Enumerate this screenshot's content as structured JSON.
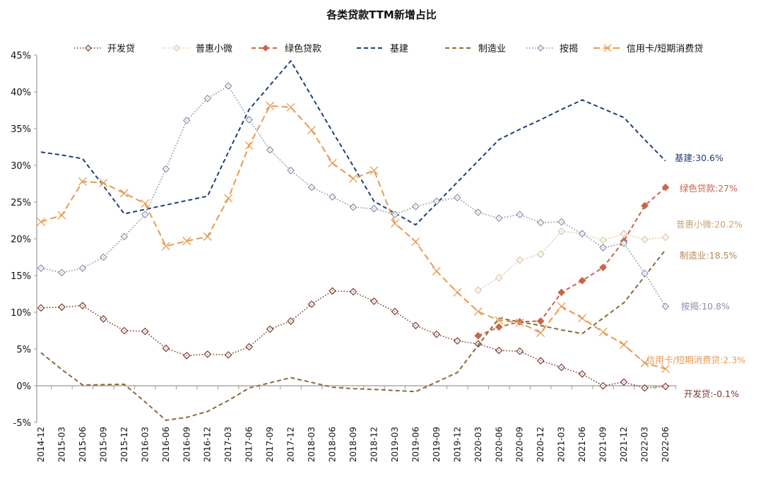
{
  "chart_data": {
    "type": "line",
    "title": "各类贷款TTM新增占比",
    "xlabel": "",
    "ylabel": "",
    "ylim": [
      -5,
      45
    ],
    "yticks": [
      "-5%",
      "0%",
      "5%",
      "10%",
      "15%",
      "20%",
      "25%",
      "30%",
      "35%",
      "40%",
      "45%"
    ],
    "ytick_values": [
      -5,
      0,
      5,
      10,
      15,
      20,
      25,
      30,
      35,
      40,
      45
    ],
    "legend_position": "top",
    "grid": false,
    "categories": [
      "2014-12",
      "2015-03",
      "2015-06",
      "2015-09",
      "2015-12",
      "2016-03",
      "2016-06",
      "2016-09",
      "2016-12",
      "2017-03",
      "2017-06",
      "2017-09",
      "2017-12",
      "2018-03",
      "2018-06",
      "2018-09",
      "2018-12",
      "2019-03",
      "2019-06",
      "2019-09",
      "2019-12",
      "2020-03",
      "2020-06",
      "2020-09",
      "2020-12",
      "2021-03",
      "2021-06",
      "2021-09",
      "2021-12",
      "2022-03",
      "2022-06"
    ],
    "series": [
      {
        "name": "开发贷",
        "color": "#7a3b2e",
        "dash": "dot",
        "marker": "diamond-open",
        "end_label": "开发贷:-0.1%",
        "values": [
          10.6,
          10.7,
          10.9,
          9.1,
          7.5,
          7.4,
          5.1,
          4.1,
          4.3,
          4.2,
          5.3,
          7.7,
          8.8,
          11.1,
          12.9,
          12.8,
          11.5,
          10.1,
          8.2,
          7.0,
          6.1,
          5.7,
          4.8,
          4.7,
          3.4,
          2.5,
          1.6,
          0.0,
          0.5,
          -0.3,
          -0.1
        ]
      },
      {
        "name": "普惠小微",
        "color": "#dcc3a3",
        "dash": "dot",
        "marker": "diamond-open",
        "end_label": "普惠小微:20.2%",
        "values": [
          null,
          null,
          null,
          null,
          null,
          null,
          null,
          null,
          null,
          null,
          null,
          null,
          null,
          null,
          null,
          null,
          null,
          null,
          null,
          null,
          null,
          13.0,
          14.7,
          17.1,
          17.9,
          21.0,
          20.7,
          19.8,
          20.7,
          19.9,
          20.2
        ]
      },
      {
        "name": "绿色贷款",
        "color": "#c8664a",
        "dash": "dash",
        "marker": "diamond-filled",
        "end_label": "绿色贷款:27%",
        "values": [
          null,
          null,
          null,
          null,
          null,
          null,
          null,
          null,
          null,
          null,
          null,
          null,
          null,
          null,
          null,
          null,
          null,
          null,
          null,
          null,
          null,
          6.8,
          8.0,
          8.7,
          8.8,
          12.7,
          14.3,
          16.1,
          19.7,
          24.5,
          27.0
        ]
      },
      {
        "name": "基建",
        "color": "#1f3f73",
        "dash": "dash",
        "marker": "none",
        "end_label": "基建:30.6%",
        "values": [
          31.8,
          31.4,
          30.9,
          27.2,
          23.4,
          24.0,
          24.6,
          25.2,
          25.8,
          31.8,
          37.6,
          40.9,
          44.2,
          39.4,
          34.6,
          29.9,
          25.1,
          23.5,
          21.9,
          24.8,
          27.7,
          30.6,
          33.5,
          34.9,
          36.2,
          37.6,
          38.9,
          37.7,
          36.5,
          33.5,
          30.6
        ]
      },
      {
        "name": "制造业",
        "color": "#8c6a3a",
        "dash": "dash",
        "marker": "none",
        "end_label": "制造业:18.5%",
        "values": [
          4.5,
          2.2,
          0.1,
          0.15,
          0.2,
          -2.2,
          -4.7,
          -4.3,
          -3.5,
          -2.0,
          -0.3,
          0.4,
          1.1,
          0.45,
          -0.2,
          -0.4,
          -0.5,
          -0.65,
          -0.8,
          0.5,
          1.8,
          5.5,
          9.2,
          8.7,
          8.2,
          7.6,
          7.1,
          9.2,
          11.3,
          14.9,
          18.5
        ]
      },
      {
        "name": "按揭",
        "color": "#8a90a8",
        "dash": "dot",
        "marker": "diamond-open",
        "end_label": "按揭:10.8%",
        "values": [
          16.0,
          15.4,
          16.0,
          17.5,
          20.3,
          23.3,
          29.5,
          36.1,
          39.1,
          40.8,
          36.2,
          32.1,
          29.3,
          27.0,
          25.7,
          24.3,
          24.1,
          23.3,
          24.4,
          25.1,
          25.6,
          23.6,
          22.8,
          23.3,
          22.2,
          22.3,
          20.7,
          18.8,
          19.4,
          15.3,
          10.8
        ]
      },
      {
        "name": "信用卡/短期消费贷",
        "color": "#e89a50",
        "dash": "longdash",
        "marker": "x",
        "end_label": "信用卡/短期消费贷:2.3%",
        "values": [
          22.3,
          23.2,
          27.8,
          27.6,
          26.2,
          24.8,
          19.0,
          19.7,
          20.3,
          25.5,
          32.7,
          38.1,
          37.9,
          34.8,
          30.3,
          28.2,
          29.3,
          22.1,
          19.6,
          15.6,
          12.7,
          10.1,
          8.9,
          8.6,
          7.2,
          10.8,
          9.2,
          7.3,
          5.6,
          3.1,
          2.3
        ]
      }
    ]
  }
}
